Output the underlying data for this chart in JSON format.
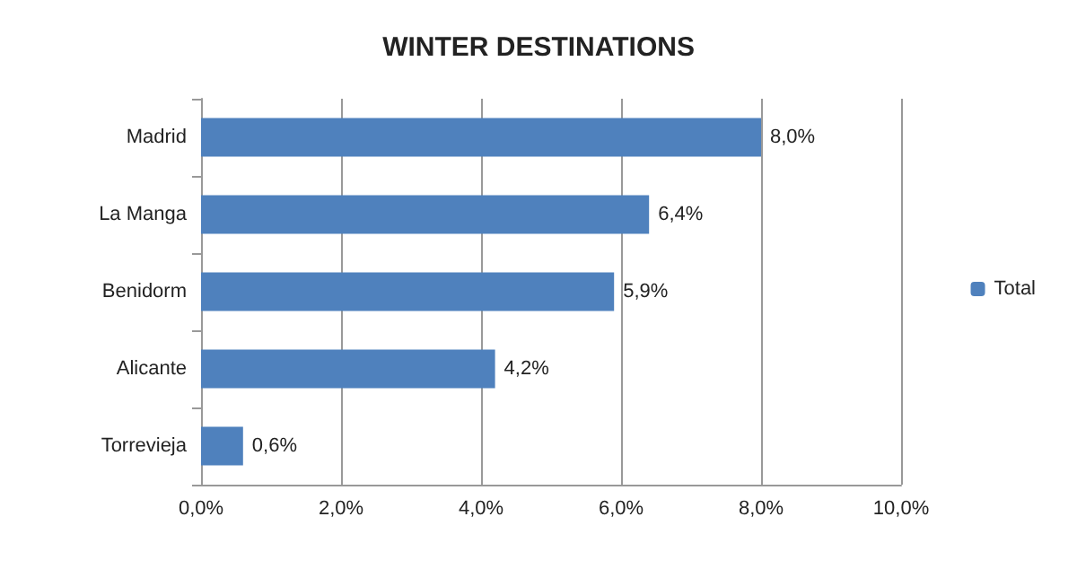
{
  "chart_data": {
    "type": "bar",
    "orientation": "horizontal",
    "title": "WINTER DESTINATIONS",
    "categories": [
      "Madrid",
      "La Manga",
      "Benidorm",
      "Alicante",
      "Torrevieja"
    ],
    "series": [
      {
        "name": "Total",
        "color": "#4f81bd",
        "values": [
          8.0,
          6.4,
          5.9,
          4.2,
          0.6
        ],
        "value_labels": [
          "8,0%",
          "6,4%",
          "5,9%",
          "4,2%",
          "0,6%"
        ]
      }
    ],
    "xlim": [
      0,
      10
    ],
    "xticks": [
      {
        "value": 0,
        "label": "0,0%"
      },
      {
        "value": 2,
        "label": "2,0%"
      },
      {
        "value": 4,
        "label": "4,0%"
      },
      {
        "value": 6,
        "label": "6,0%"
      },
      {
        "value": 8,
        "label": "8,0%"
      },
      {
        "value": 10,
        "label": "10,0%"
      }
    ],
    "grid": "x",
    "legend": "right"
  }
}
